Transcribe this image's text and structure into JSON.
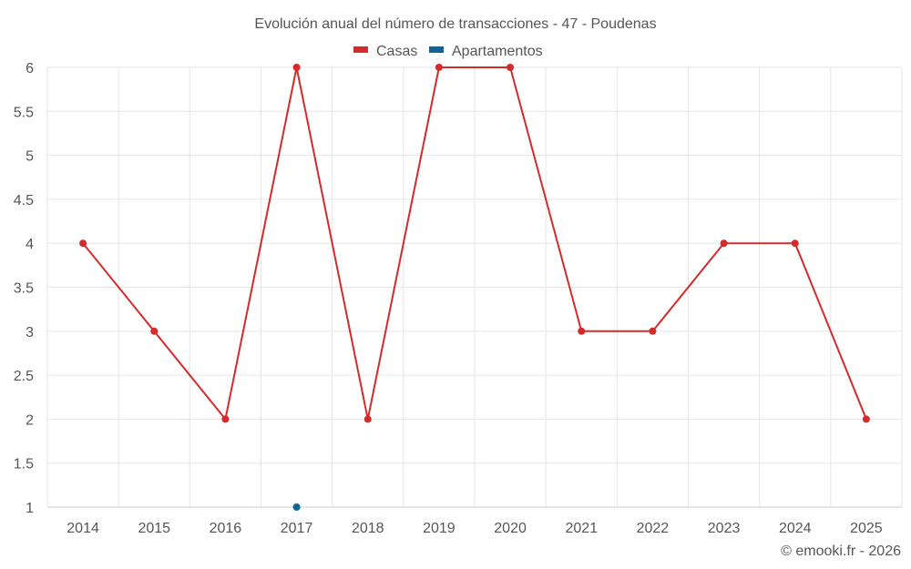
{
  "chart_data": {
    "type": "line",
    "title": "Evolución anual del número de transacciones - 47 - Poudenas",
    "categories": [
      "2014",
      "2015",
      "2016",
      "2017",
      "2018",
      "2019",
      "2020",
      "2021",
      "2022",
      "2023",
      "2024",
      "2025"
    ],
    "series": [
      {
        "name": "Casas",
        "color": "#d42a2a",
        "values": [
          4,
          3,
          2,
          6,
          2,
          6,
          6,
          3,
          3,
          4,
          4,
          2
        ]
      },
      {
        "name": "Apartamentos",
        "color": "#0d6699",
        "values": [
          null,
          null,
          null,
          1,
          null,
          null,
          null,
          null,
          null,
          null,
          null,
          null
        ]
      }
    ],
    "yticks": [
      "1",
      "1.5",
      "2",
      "2.5",
      "3",
      "3.5",
      "4",
      "4.5",
      "5",
      "5.5",
      "6"
    ],
    "ylim": [
      1,
      6
    ],
    "grid": true,
    "legend_position": "top-center",
    "xlabel": "",
    "ylabel": ""
  },
  "credit": "© emooki.fr - 2026"
}
